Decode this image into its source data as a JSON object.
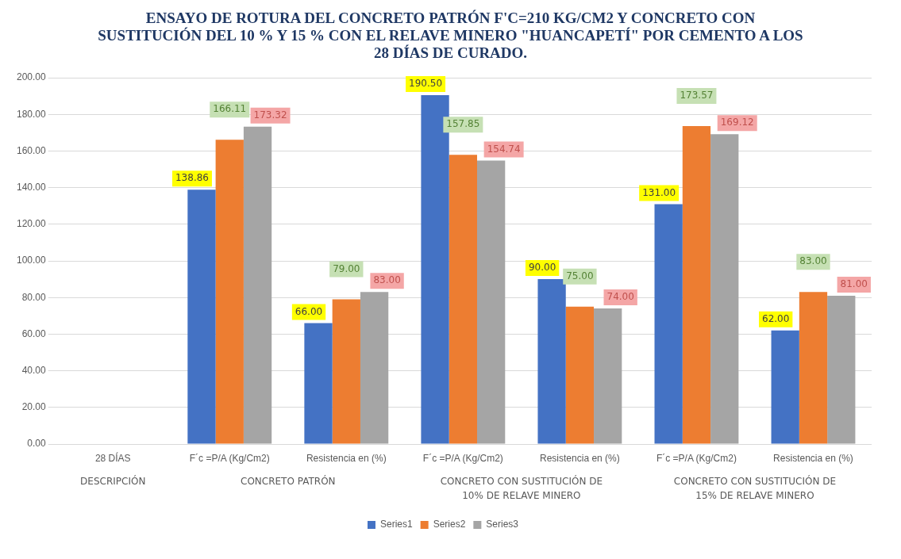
{
  "chart_data": {
    "type": "bar",
    "title": "ENSAYO DE ROTURA DEL CONCRETO PATRÓN F'C=210 KG/CM2 Y CONCRETO CON SUSTITUCIÓN DEL 10 % Y 15 % CON EL RELAVE MINERO \"HUANCAPETÍ\" POR CEMENTO A LOS 28 DÍAS DE CURADO.",
    "categories": [
      "28 DÍAS",
      "F´c =P/A (Kg/Cm2)",
      "Resistencia en (%)",
      "F´c =P/A (Kg/Cm2)",
      "Resistencia en (%)",
      "F´c =P/A (Kg/Cm2)",
      "Resistencia en (%)"
    ],
    "annotations": [
      "DESCRIPCIÓN",
      "CONCRETO PATRÓN",
      "CONCRETO CON SUSTITUCIÓN DE\n10% DE RELAVE MINERO",
      "CONCRETO CON SUSTITUCIÓN DE\n15% DE RELAVE MINERO"
    ],
    "series": [
      {
        "name": "Series1",
        "color": "#4472c4",
        "values": [
          null,
          138.86,
          66,
          190.5,
          90,
          131,
          62
        ],
        "value_labels": [
          null,
          "138.86",
          "66.00",
          "190.50",
          "90.00",
          "131.00",
          "62.00"
        ]
      },
      {
        "name": "Series2",
        "color": "#ed7d31",
        "values": [
          null,
          166.11,
          79,
          157.85,
          75,
          173.57,
          83
        ],
        "value_labels": [
          null,
          "166.11",
          "79.00",
          "157.85",
          "75.00",
          "173.57",
          "83.00"
        ]
      },
      {
        "name": "Series3",
        "color": "#a5a5a5",
        "values": [
          null,
          173.32,
          83,
          154.74,
          74,
          169.12,
          81
        ],
        "value_labels": [
          null,
          "173.32",
          "83.00",
          "154.74",
          "74.00",
          "169.12",
          "81.00"
        ]
      }
    ],
    "ylim": [
      0,
      200
    ],
    "yticks": [
      {
        "value": 0,
        "label": "0.00"
      },
      {
        "value": 20,
        "label": "20.00"
      },
      {
        "value": 40,
        "label": "40.00"
      },
      {
        "value": 60,
        "label": "60.00"
      },
      {
        "value": 80,
        "label": "80.00"
      },
      {
        "value": 100,
        "label": "100.00"
      },
      {
        "value": 120,
        "label": "120.00"
      },
      {
        "value": 140,
        "label": "140.00"
      },
      {
        "value": 160,
        "label": "160.00"
      },
      {
        "value": 180,
        "label": "180.00"
      },
      {
        "value": 200,
        "label": "200.00"
      }
    ],
    "grid": "y",
    "legend": "bottom"
  }
}
